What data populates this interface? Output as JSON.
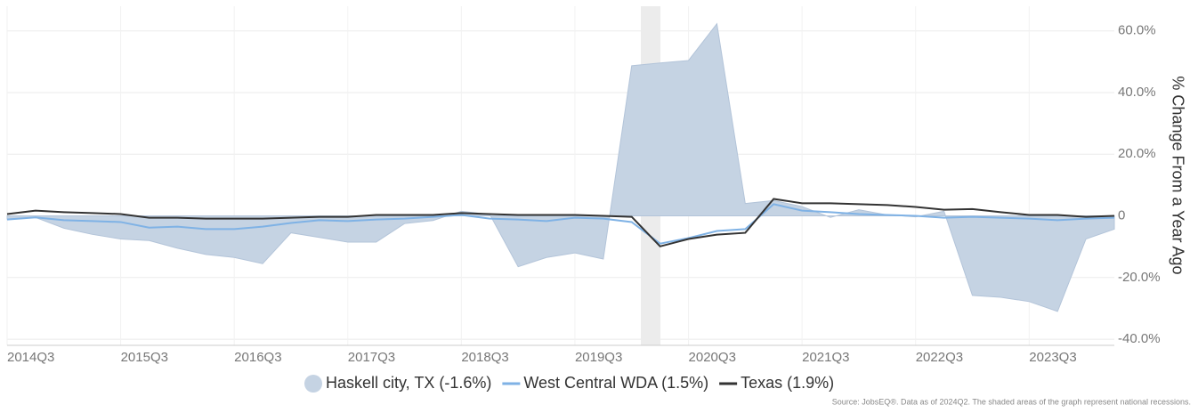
{
  "chart_data": {
    "type": "line",
    "y_axis_label": "% Change From a Year Ago",
    "source": "Source: JobsEQ®. Data as of 2024Q2. The shaded areas of the graph represent national recessions.",
    "categories": [
      "2014Q3",
      null,
      null,
      null,
      "2015Q3",
      null,
      null,
      null,
      "2016Q3",
      null,
      null,
      null,
      "2017Q3",
      null,
      null,
      null,
      "2018Q3",
      null,
      null,
      null,
      "2019Q3",
      null,
      null,
      null,
      "2020Q3",
      null,
      null,
      null,
      "2021Q3",
      null,
      null,
      null,
      "2022Q3",
      null,
      null,
      null,
      "2023Q3",
      null,
      null,
      null
    ],
    "ylim": [
      -42,
      68
    ],
    "yticks": [
      {
        "value": -40,
        "label": "-40.0%"
      },
      {
        "value": -20,
        "label": "-20.0%"
      },
      0,
      {
        "value": 20,
        "label": "20.0%"
      },
      {
        "value": 40,
        "label": "40.0%"
      },
      {
        "value": 60,
        "label": "60.0%"
      }
    ],
    "grid": true,
    "series": [
      {
        "name": "Haskell city, TX (-1.6%)",
        "type": "area",
        "color": "#c5d3e3",
        "values": [
          -1,
          -0.5,
          -4,
          -6,
          -7.5,
          -8,
          -10.5,
          -12.5,
          -13.5,
          -15.5,
          -5.5,
          -7,
          -8.5,
          -8.5,
          -2.5,
          -1.5,
          1.5,
          0.5,
          -16.5,
          -13.5,
          -12,
          -14,
          48.7,
          49.6,
          50.4,
          62.3,
          4,
          5,
          3,
          -0.5,
          2,
          0.3,
          -0.3,
          1.5,
          -25.8,
          -26.4,
          -27.8,
          -31,
          -7.5,
          -4.3
        ]
      },
      {
        "name": "West Central WDA (1.5%)",
        "type": "line",
        "color": "#7fb2e5",
        "values": [
          -1.2,
          -0.5,
          -1.4,
          -1.7,
          -2,
          -3.8,
          -3.5,
          -4.3,
          -4.3,
          -3.5,
          -2.3,
          -1.4,
          -1.7,
          -1.2,
          -0.9,
          -0.3,
          0.3,
          -0.9,
          -1.2,
          -1.7,
          -0.6,
          -0.9,
          -2,
          -9,
          -7.2,
          -4.9,
          -4.3,
          3.8,
          1.7,
          1.2,
          0.6,
          0.3,
          0,
          -0.6,
          -0.3,
          -0.6,
          -0.9,
          -1.4,
          -0.9,
          -0.6
        ]
      },
      {
        "name": "Texas (1.9%)",
        "type": "line",
        "color": "#333333",
        "values": [
          0.6,
          1.7,
          1.2,
          0.9,
          0.6,
          -0.6,
          -0.6,
          -0.9,
          -0.9,
          -0.9,
          -0.6,
          -0.3,
          -0.3,
          0.3,
          0.3,
          0.3,
          0.9,
          0.6,
          0.3,
          0.3,
          0.3,
          0,
          -0.3,
          -9.9,
          -7.5,
          -6.1,
          -5.5,
          5.5,
          4.1,
          4.1,
          3.8,
          3.5,
          2.9,
          2.0,
          2.2,
          1.2,
          0.3,
          0.3,
          -0.3,
          0
        ]
      }
    ]
  }
}
